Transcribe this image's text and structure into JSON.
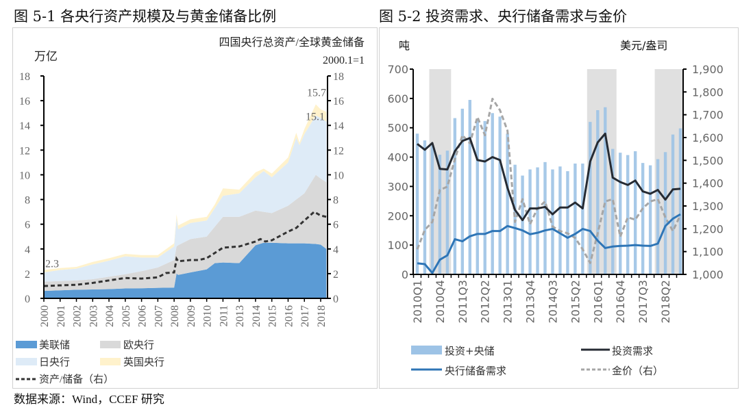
{
  "source_note": "数据来源：Wind，CCEF 研究",
  "chart_data": [
    {
      "type": "area",
      "title": "图 5-1 各央行资产规模及与黄金储备比例",
      "ylabel": "万亿",
      "y2label": "四国央行总资产/全球黄金储备",
      "y2label_sub": "2000.1=1",
      "ylim": [
        0,
        18
      ],
      "y2lim": [
        0,
        18
      ],
      "yticks": [
        "0",
        "2",
        "4",
        "6",
        "8",
        "10",
        "12",
        "14",
        "16",
        "18"
      ],
      "xticks": [
        "2000",
        "2001",
        "2002",
        "2003",
        "2004",
        "2005",
        "2006",
        "2007",
        "2008",
        "2009",
        "2010",
        "2011",
        "2013",
        "2014",
        "2015",
        "2016",
        "2017",
        "2018"
      ],
      "stacked": true,
      "grid": false,
      "legend_placement": "bottom",
      "x": [
        2000,
        2001,
        2002,
        2003,
        2004,
        2005,
        2006,
        2007,
        2008,
        2008.15,
        2008.25,
        2009,
        2010,
        2010.5,
        2011,
        2013,
        2014,
        2014.5,
        2015,
        2016,
        2016.5,
        2016.7,
        2017,
        2017.7,
        2018,
        2018.35
      ],
      "series": [
        {
          "name": "美联储",
          "color": "#5b9bd5",
          "values": [
            0.6,
            0.65,
            0.7,
            0.72,
            0.75,
            0.8,
            0.82,
            0.85,
            0.87,
            2.0,
            1.9,
            2.1,
            2.35,
            2.85,
            2.9,
            2.85,
            4.3,
            4.5,
            4.5,
            4.45,
            4.45,
            4.45,
            4.45,
            4.4,
            4.35,
            4.0
          ]
        },
        {
          "name": "欧央行",
          "color": "#d9d9d9",
          "values": [
            0.75,
            0.75,
            0.75,
            0.83,
            1.0,
            1.15,
            1.38,
            1.65,
            2.23,
            2.2,
            2.4,
            2.7,
            2.65,
            2.95,
            3.7,
            3.75,
            2.8,
            2.5,
            2.4,
            3.05,
            3.55,
            3.75,
            4.05,
            5.6,
            5.35,
            5.4
          ]
        },
        {
          "name": "日央行",
          "color": "#deebf7",
          "values": [
            0.75,
            0.9,
            0.95,
            1.2,
            1.3,
            1.45,
            1.1,
            0.8,
            1.1,
            2.3,
            1.3,
            1.3,
            1.3,
            1.5,
            1.7,
            1.9,
            2.7,
            3.3,
            2.9,
            3.5,
            5.0,
            4.2,
            4.8,
            4.8,
            4.9,
            4.9
          ]
        },
        {
          "name": "英国央行",
          "color": "#fff2cc",
          "values": [
            0.2,
            0.15,
            0.15,
            0.2,
            0.2,
            0.2,
            0.2,
            0.2,
            0.25,
            0.3,
            0.3,
            0.3,
            0.3,
            0.3,
            0.6,
            0.3,
            0.4,
            0.2,
            0.3,
            0.4,
            0.4,
            0.2,
            0.4,
            0.9,
            0.7,
            0.8
          ]
        }
      ],
      "ratio_series": {
        "name": "资产/储备（右）",
        "color": "#333333",
        "axis": "right",
        "x": [
          2000,
          2001,
          2002,
          2003,
          2004,
          2005,
          2006,
          2007,
          2007.5,
          2008,
          2008.15,
          2008.25,
          2009,
          2009.5,
          2010,
          2011,
          2013,
          2014,
          2014.3,
          2014.6,
          2015,
          2016,
          2016.5,
          2017,
          2017.6,
          2018,
          2018.35
        ],
        "values": [
          1.0,
          1.05,
          1.1,
          1.25,
          1.45,
          1.65,
          1.6,
          1.7,
          2.05,
          2.1,
          3.2,
          3.0,
          3.1,
          3.1,
          3.25,
          4.1,
          4.2,
          4.6,
          4.8,
          4.6,
          4.7,
          5.4,
          5.7,
          6.3,
          7.0,
          6.7,
          6.6
        ]
      },
      "annotations": [
        {
          "text": "2.3",
          "x": 2000,
          "y": 2.3
        },
        {
          "text": "15.7",
          "x": 2017.7,
          "y": 15.7
        },
        {
          "text": "15.1",
          "x": 2018.35,
          "y": 15.1
        }
      ]
    },
    {
      "type": "bar+line",
      "title": "图 5-2 投资需求、央行储备需求与金价",
      "ylabel": "吨",
      "y2label": "美元/盎司",
      "ylim": [
        0,
        700
      ],
      "y2lim": [
        1000,
        1900
      ],
      "yticks": [
        "0",
        "100",
        "200",
        "300",
        "400",
        "500",
        "600",
        "700"
      ],
      "y2ticks": [
        "1,000",
        "1,100",
        "1,200",
        "1,300",
        "1,400",
        "1,500",
        "1,600",
        "1,700",
        "1,800",
        "1,900"
      ],
      "categories": [
        "2010Q1",
        "2010Q2",
        "2010Q3",
        "2010Q4",
        "2011Q1",
        "2011Q2",
        "2011Q3",
        "2011Q4",
        "2012Q1",
        "2012Q2",
        "2012Q3",
        "2012Q4",
        "2013Q1",
        "2013Q2",
        "2013Q3",
        "2013Q4",
        "2014Q1",
        "2014Q2",
        "2014Q3",
        "2014Q4",
        "2015Q1",
        "2015Q2",
        "2015Q3",
        "2015Q4",
        "2016Q1",
        "2016Q2",
        "2016Q3",
        "2016Q4",
        "2017Q1",
        "2017Q2",
        "2017Q3",
        "2017Q4",
        "2018Q1",
        "2018Q2",
        "2018Q3",
        "2018Q4"
      ],
      "xtick_labels": [
        "2010Q1",
        "2010Q4",
        "2011Q3",
        "2012Q2",
        "2013Q1",
        "2013Q4",
        "2014Q3",
        "2015Q2",
        "2016Q1",
        "2016Q4",
        "2017Q3",
        "2018Q2"
      ],
      "shaded_periods": [
        [
          "2010Q3",
          "2011Q1"
        ],
        [
          "2015Q4",
          "2016Q3"
        ],
        [
          "2018Q1",
          "2018Q4"
        ]
      ],
      "shade_color": "#e0e0e0",
      "grid": false,
      "legend_placement": "bottom",
      "series": [
        {
          "name": "投资+央储",
          "kind": "bar",
          "color": "#9dc3e6",
          "values": [
            480,
            457,
            440,
            408,
            422,
            533,
            565,
            595,
            530,
            523,
            550,
            538,
            480,
            374,
            337,
            358,
            365,
            383,
            358,
            368,
            352,
            378,
            378,
            520,
            560,
            570,
            428,
            415,
            407,
            420,
            380,
            372,
            393,
            417,
            477,
            498
          ]
        },
        {
          "name": "投资需求",
          "kind": "line",
          "color": "#262b33",
          "values": [
            445,
            425,
            448,
            360,
            358,
            420,
            455,
            465,
            390,
            385,
            400,
            390,
            295,
            220,
            185,
            225,
            225,
            230,
            205,
            228,
            228,
            245,
            225,
            385,
            450,
            480,
            330,
            315,
            305,
            320,
            283,
            275,
            288,
            255,
            290,
            292
          ]
        },
        {
          "name": "央行储备需求",
          "kind": "line",
          "color": "#2e75b6",
          "values": [
            38,
            35,
            5,
            50,
            65,
            120,
            113,
            130,
            138,
            138,
            148,
            148,
            165,
            158,
            150,
            137,
            142,
            150,
            155,
            140,
            125,
            138,
            155,
            148,
            115,
            90,
            95,
            97,
            98,
            100,
            98,
            97,
            105,
            165,
            190,
            205
          ]
        },
        {
          "name": "金价（右）",
          "kind": "line",
          "dashed": true,
          "axis": "right",
          "color": "#a6a6a6",
          "values": [
            1110,
            1195,
            1230,
            1370,
            1385,
            1505,
            1610,
            1575,
            1690,
            1610,
            1770,
            1720,
            1630,
            1230,
            1330,
            1220,
            1290,
            1320,
            1210,
            1190,
            1180,
            1160,
            1110,
            1050,
            1180,
            1320,
            1330,
            1165,
            1250,
            1240,
            1290,
            1320,
            1330,
            1250,
            1190,
            1260
          ]
        }
      ]
    }
  ]
}
